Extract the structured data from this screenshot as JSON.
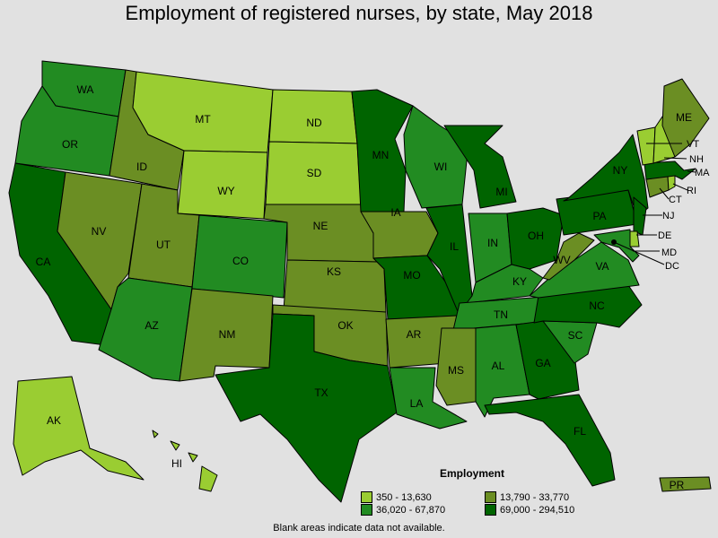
{
  "title": "Employment of registered nurses, by state, May 2018",
  "legend": {
    "title": "Employment",
    "bins": [
      {
        "label": "350 - 13,630",
        "color": "#9acd32"
      },
      {
        "label": "13,790 - 33,770",
        "color": "#6b8e23"
      },
      {
        "label": "36,020 - 67,870",
        "color": "#228b22"
      },
      {
        "label": "69,000 - 294,510",
        "color": "#006400"
      }
    ]
  },
  "footnote": "Blank areas indicate data not available.",
  "states": {
    "WA": {
      "label": "WA",
      "bin": 2
    },
    "OR": {
      "label": "OR",
      "bin": 2
    },
    "CA": {
      "label": "CA",
      "bin": 3
    },
    "ID": {
      "label": "ID",
      "bin": 1
    },
    "NV": {
      "label": "NV",
      "bin": 1
    },
    "MT": {
      "label": "MT",
      "bin": 0
    },
    "WY": {
      "label": "WY",
      "bin": 0
    },
    "UT": {
      "label": "UT",
      "bin": 1
    },
    "AZ": {
      "label": "AZ",
      "bin": 2
    },
    "CO": {
      "label": "CO",
      "bin": 2
    },
    "NM": {
      "label": "NM",
      "bin": 1
    },
    "ND": {
      "label": "ND",
      "bin": 0
    },
    "SD": {
      "label": "SD",
      "bin": 0
    },
    "NE": {
      "label": "NE",
      "bin": 1
    },
    "KS": {
      "label": "KS",
      "bin": 1
    },
    "OK": {
      "label": "OK",
      "bin": 1
    },
    "TX": {
      "label": "TX",
      "bin": 3
    },
    "MN": {
      "label": "MN",
      "bin": 3
    },
    "IA": {
      "label": "IA",
      "bin": 1
    },
    "MO": {
      "label": "MO",
      "bin": 3
    },
    "AR": {
      "label": "AR",
      "bin": 1
    },
    "LA": {
      "label": "LA",
      "bin": 2
    },
    "WI": {
      "label": "WI",
      "bin": 2
    },
    "IL": {
      "label": "IL",
      "bin": 3
    },
    "MI": {
      "label": "MI",
      "bin": 3
    },
    "IN": {
      "label": "IN",
      "bin": 2
    },
    "OH": {
      "label": "OH",
      "bin": 3
    },
    "KY": {
      "label": "KY",
      "bin": 2
    },
    "TN": {
      "label": "TN",
      "bin": 2
    },
    "MS": {
      "label": "MS",
      "bin": 1
    },
    "AL": {
      "label": "AL",
      "bin": 2
    },
    "GA": {
      "label": "GA",
      "bin": 3
    },
    "FL": {
      "label": "FL",
      "bin": 3
    },
    "SC": {
      "label": "SC",
      "bin": 2
    },
    "NC": {
      "label": "NC",
      "bin": 3
    },
    "VA": {
      "label": "VA",
      "bin": 2
    },
    "WV": {
      "label": "WV",
      "bin": 1
    },
    "PA": {
      "label": "PA",
      "bin": 3
    },
    "NY": {
      "label": "NY",
      "bin": 3
    },
    "ME": {
      "label": "ME",
      "bin": 1
    },
    "VT": {
      "label": "VT",
      "bin": 0
    },
    "NH": {
      "label": "NH",
      "bin": 0
    },
    "MA": {
      "label": "MA",
      "bin": 3
    },
    "RI": {
      "label": "RI",
      "bin": 0
    },
    "CT": {
      "label": "CT",
      "bin": 1
    },
    "NJ": {
      "label": "NJ",
      "bin": 3
    },
    "DE": {
      "label": "DE",
      "bin": 0
    },
    "MD": {
      "label": "MD",
      "bin": 2
    },
    "DC": {
      "label": "DC",
      "bin": 0
    },
    "AK": {
      "label": "AK",
      "bin": 0
    },
    "HI": {
      "label": "HI",
      "bin": 0
    },
    "PR": {
      "label": "PR",
      "bin": 1
    }
  }
}
